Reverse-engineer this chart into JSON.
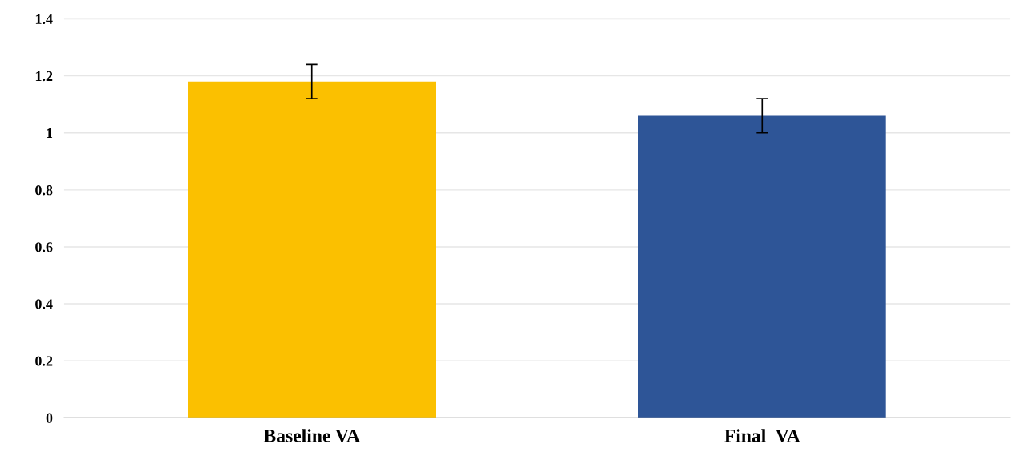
{
  "chart_data": {
    "type": "bar",
    "categories": [
      "Baseline VA",
      "Final  VA"
    ],
    "values": [
      1.18,
      1.06
    ],
    "colors": [
      "#fbc000",
      "#2e5597"
    ],
    "errors": [
      0.06,
      0.06
    ],
    "ylim": [
      0,
      1.4
    ],
    "yticks": [
      0,
      0.2,
      0.4,
      0.6,
      0.8,
      1,
      1.2,
      1.4
    ],
    "grid": "y",
    "legend": false
  }
}
